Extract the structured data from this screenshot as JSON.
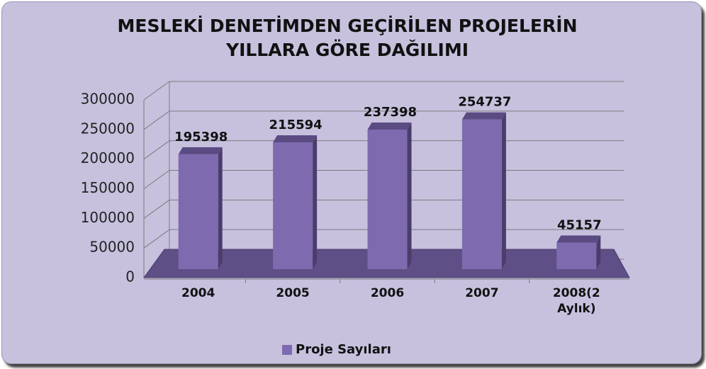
{
  "chart_data": {
    "type": "bar3d",
    "title": "MESLEKİ DENETİMDEN GEÇİRİLEN PROJELERİN YILLARA GÖRE DAĞILIMI",
    "categories": [
      "2004",
      "2005",
      "2006",
      "2007",
      "2008(2 Aylık)"
    ],
    "series": [
      {
        "name": "Proje Sayıları",
        "color": "#7e6aae",
        "values": [
          195398,
          215594,
          237398,
          254737,
          45157
        ]
      }
    ],
    "ylim": [
      0,
      300000
    ],
    "yticks": [
      0,
      50000,
      100000,
      150000,
      200000,
      250000,
      300000
    ],
    "grid": true,
    "legend": "bottom"
  }
}
